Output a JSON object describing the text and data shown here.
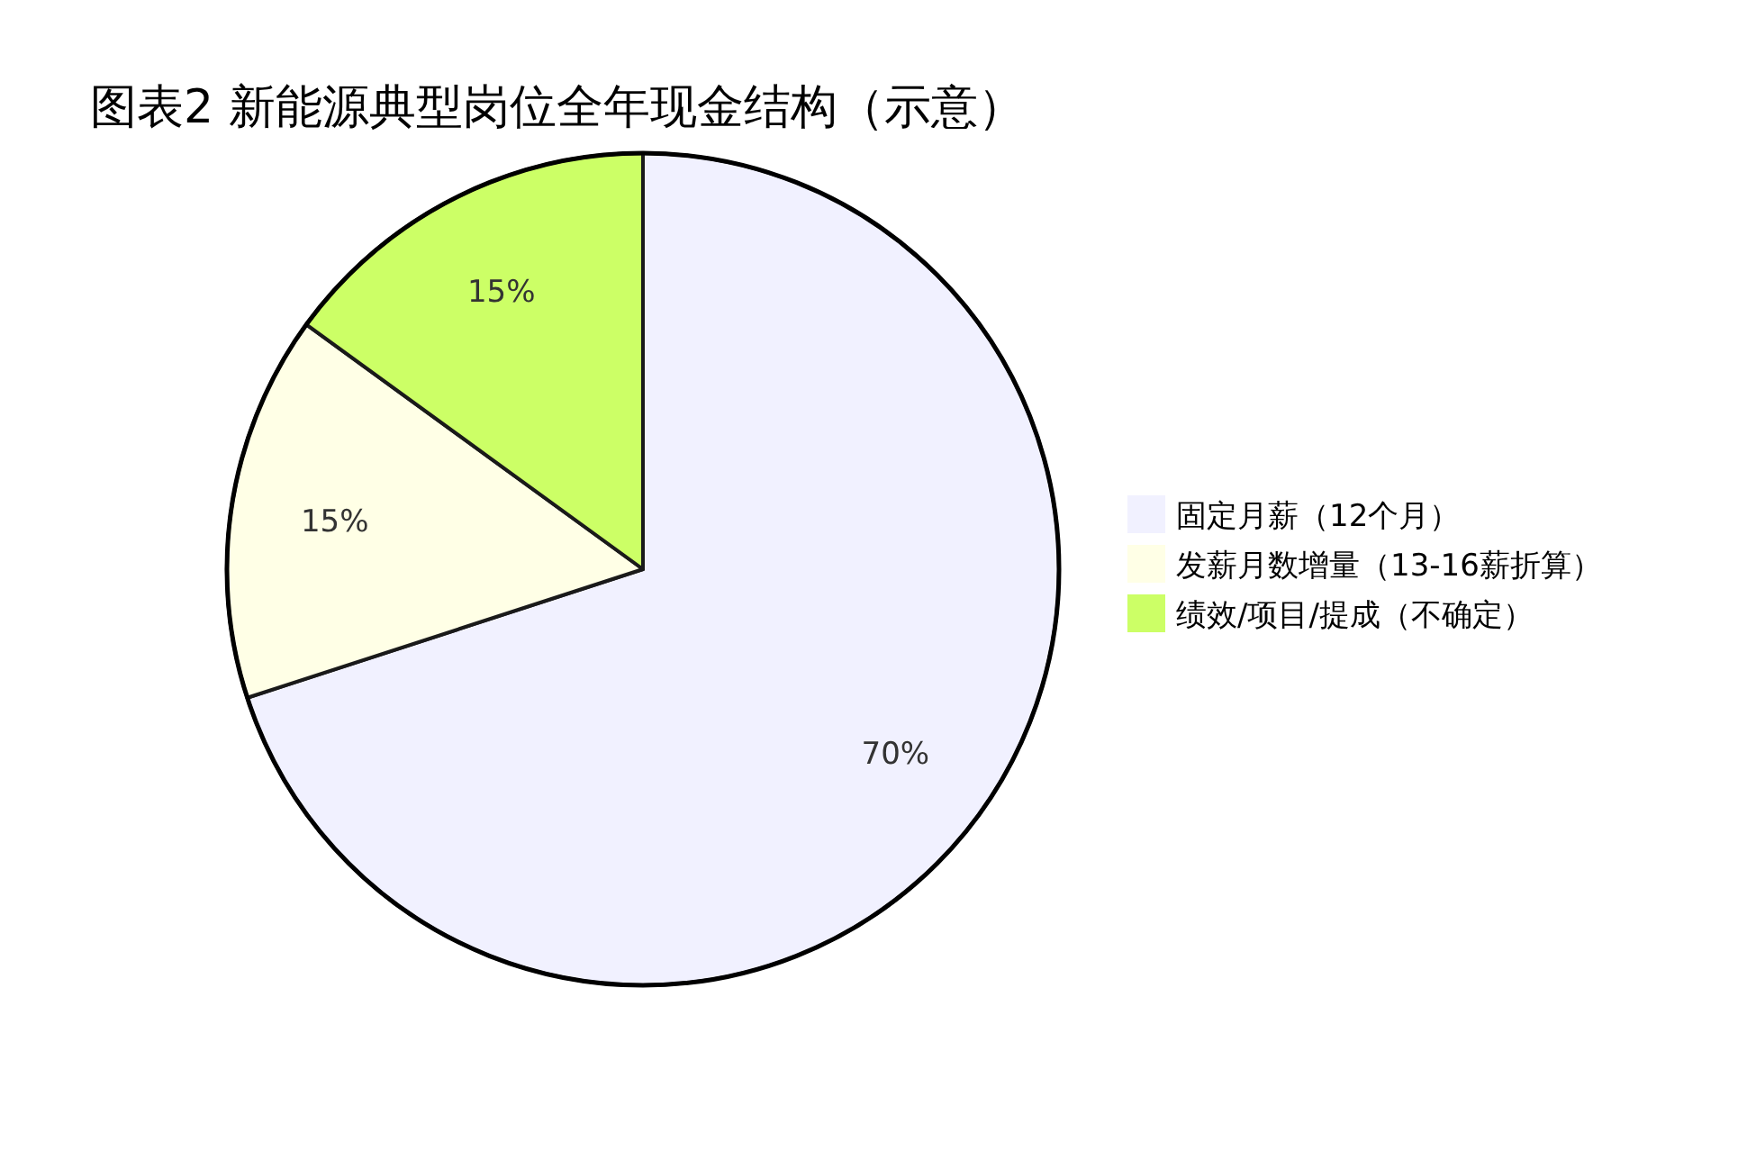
{
  "chart_data": {
    "type": "pie",
    "title": "图表2 新能源典型岗位全年现金结构（示意）",
    "categories": [
      "固定月薪（12个月）",
      "发薪月数增量（13-16薪折算）",
      "绩效/项目/提成（不确定）"
    ],
    "values": [
      70,
      15,
      15
    ],
    "colors": [
      "#f1f1ff",
      "#ffffe6",
      "#ccff66"
    ],
    "value_labels": [
      "70%",
      "15%",
      "15%"
    ],
    "legend": "right"
  }
}
